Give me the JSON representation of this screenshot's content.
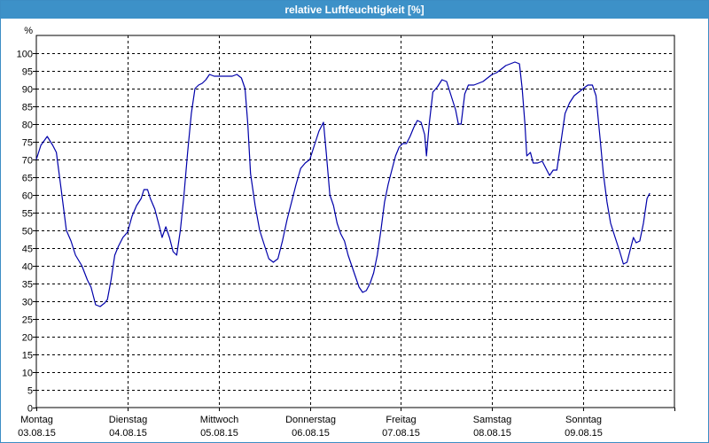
{
  "window": {
    "title": "relative Luftfeuchtigkeit [%]"
  },
  "chart_data": {
    "type": "line",
    "title": "relative Luftfeuchtigkeit [%]",
    "ylabel": "%",
    "xlabel": "",
    "ylim": [
      0,
      105
    ],
    "yticks": [
      0,
      5,
      10,
      15,
      20,
      25,
      30,
      35,
      40,
      45,
      50,
      55,
      60,
      65,
      70,
      75,
      80,
      85,
      90,
      95,
      100
    ],
    "grid": true,
    "days": [
      {
        "name": "Montag",
        "date": "03.08.15"
      },
      {
        "name": "Dienstag",
        "date": "04.08.15"
      },
      {
        "name": "Mittwoch",
        "date": "05.08.15"
      },
      {
        "name": "Donnerstag",
        "date": "06.08.15"
      },
      {
        "name": "Freitag",
        "date": "07.08.15"
      },
      {
        "name": "Samstag",
        "date": "08.08.15"
      },
      {
        "name": "Sonntag",
        "date": "09.08.15"
      }
    ],
    "series": [
      {
        "color": "#0000aa",
        "points": [
          [
            0.0,
            70
          ],
          [
            0.05,
            74
          ],
          [
            0.12,
            76.5
          ],
          [
            0.18,
            74
          ],
          [
            0.22,
            72
          ],
          [
            0.27,
            62
          ],
          [
            0.33,
            50
          ],
          [
            0.38,
            47
          ],
          [
            0.43,
            43
          ],
          [
            0.5,
            40
          ],
          [
            0.56,
            36
          ],
          [
            0.6,
            34
          ],
          [
            0.65,
            29
          ],
          [
            0.7,
            28.5
          ],
          [
            0.75,
            29.5
          ],
          [
            0.78,
            30.5
          ],
          [
            0.82,
            36
          ],
          [
            0.86,
            43
          ],
          [
            0.9,
            45.5
          ],
          [
            0.95,
            48
          ],
          [
            1.0,
            49.5
          ],
          [
            1.05,
            54
          ],
          [
            1.1,
            57
          ],
          [
            1.15,
            59
          ],
          [
            1.18,
            61.5
          ],
          [
            1.22,
            61.5
          ],
          [
            1.25,
            59
          ],
          [
            1.3,
            56
          ],
          [
            1.35,
            51
          ],
          [
            1.38,
            48
          ],
          [
            1.42,
            51
          ],
          [
            1.46,
            48
          ],
          [
            1.5,
            44
          ],
          [
            1.54,
            43
          ],
          [
            1.58,
            50
          ],
          [
            1.62,
            60
          ],
          [
            1.66,
            72
          ],
          [
            1.7,
            83
          ],
          [
            1.74,
            90
          ],
          [
            1.78,
            91
          ],
          [
            1.82,
            91.5
          ],
          [
            1.86,
            92.5
          ],
          [
            1.9,
            94
          ],
          [
            1.95,
            93.5
          ],
          [
            2.0,
            93.5
          ],
          [
            2.05,
            93.5
          ],
          [
            2.1,
            93.5
          ],
          [
            2.15,
            93.5
          ],
          [
            2.2,
            94
          ],
          [
            2.25,
            93
          ],
          [
            2.29,
            90
          ],
          [
            2.32,
            80
          ],
          [
            2.35,
            66
          ],
          [
            2.4,
            57
          ],
          [
            2.45,
            50
          ],
          [
            2.5,
            46
          ],
          [
            2.55,
            42
          ],
          [
            2.6,
            41
          ],
          [
            2.65,
            42
          ],
          [
            2.7,
            47
          ],
          [
            2.75,
            53
          ],
          [
            2.8,
            58
          ],
          [
            2.85,
            63
          ],
          [
            2.9,
            67.5
          ],
          [
            2.95,
            69
          ],
          [
            3.0,
            70
          ],
          [
            3.05,
            74
          ],
          [
            3.1,
            78
          ],
          [
            3.15,
            80.5
          ],
          [
            3.18,
            72
          ],
          [
            3.22,
            60
          ],
          [
            3.26,
            57
          ],
          [
            3.3,
            52
          ],
          [
            3.34,
            49
          ],
          [
            3.38,
            47
          ],
          [
            3.42,
            43
          ],
          [
            3.46,
            40
          ],
          [
            3.5,
            37
          ],
          [
            3.54,
            34
          ],
          [
            3.58,
            32.5
          ],
          [
            3.62,
            33
          ],
          [
            3.66,
            35
          ],
          [
            3.7,
            38
          ],
          [
            3.74,
            43
          ],
          [
            3.78,
            50
          ],
          [
            3.82,
            58
          ],
          [
            3.86,
            63
          ],
          [
            3.9,
            67
          ],
          [
            3.94,
            71
          ],
          [
            3.98,
            73.5
          ],
          [
            4.02,
            74.5
          ],
          [
            4.06,
            74.5
          ],
          [
            4.1,
            76.5
          ],
          [
            4.14,
            79
          ],
          [
            4.18,
            81
          ],
          [
            4.22,
            80.5
          ],
          [
            4.26,
            77
          ],
          [
            4.28,
            71
          ],
          [
            4.31,
            80
          ],
          [
            4.35,
            89
          ],
          [
            4.4,
            90.5
          ],
          [
            4.45,
            92.5
          ],
          [
            4.5,
            92
          ],
          [
            4.55,
            88
          ],
          [
            4.6,
            84
          ],
          [
            4.63,
            80
          ],
          [
            4.66,
            80
          ],
          [
            4.7,
            88.5
          ],
          [
            4.74,
            91
          ],
          [
            4.8,
            91
          ],
          [
            4.85,
            91.5
          ],
          [
            4.9,
            92
          ],
          [
            4.95,
            93
          ],
          [
            5.0,
            94
          ],
          [
            5.05,
            94.5
          ],
          [
            5.1,
            95.5
          ],
          [
            5.15,
            96.5
          ],
          [
            5.2,
            97
          ],
          [
            5.25,
            97.5
          ],
          [
            5.3,
            97
          ],
          [
            5.33,
            90
          ],
          [
            5.36,
            80
          ],
          [
            5.38,
            71
          ],
          [
            5.42,
            72
          ],
          [
            5.45,
            69
          ],
          [
            5.5,
            69
          ],
          [
            5.55,
            69.5
          ],
          [
            5.6,
            67
          ],
          [
            5.63,
            65.5
          ],
          [
            5.67,
            67
          ],
          [
            5.71,
            67
          ],
          [
            5.75,
            74
          ],
          [
            5.8,
            83
          ],
          [
            5.85,
            86
          ],
          [
            5.9,
            88
          ],
          [
            5.95,
            89
          ],
          [
            6.0,
            90
          ],
          [
            6.05,
            91
          ],
          [
            6.1,
            91
          ],
          [
            6.14,
            88
          ],
          [
            6.18,
            77
          ],
          [
            6.22,
            66
          ],
          [
            6.26,
            58
          ],
          [
            6.3,
            52
          ],
          [
            6.35,
            48
          ],
          [
            6.4,
            44
          ],
          [
            6.44,
            40.5
          ],
          [
            6.48,
            41
          ],
          [
            6.52,
            45
          ],
          [
            6.55,
            48
          ],
          [
            6.58,
            46.5
          ],
          [
            6.62,
            47
          ],
          [
            6.66,
            52
          ],
          [
            6.7,
            59
          ],
          [
            6.73,
            60.5
          ]
        ]
      }
    ]
  }
}
